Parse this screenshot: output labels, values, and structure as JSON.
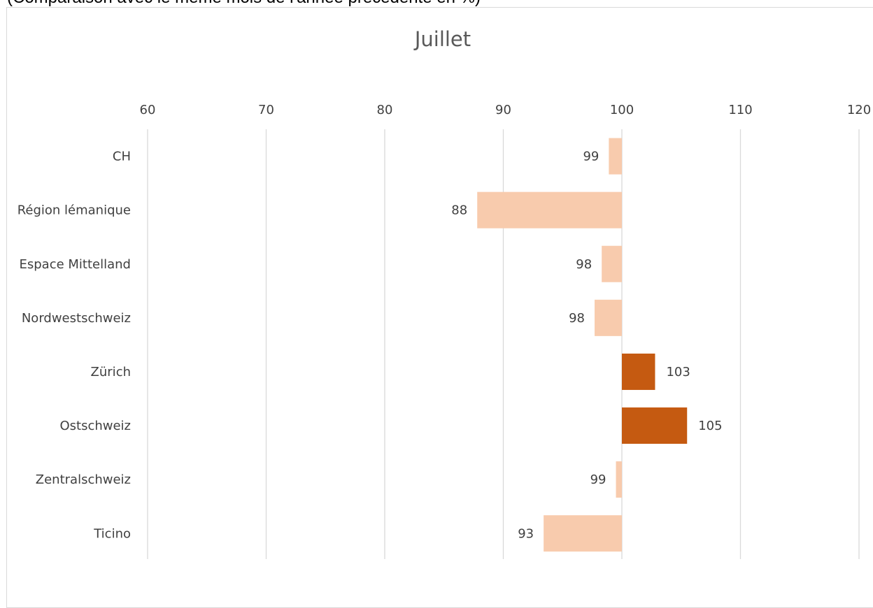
{
  "header_note": "(Comparaison avec le même mois de l'année précédente en %)",
  "colors": {
    "decline": "#f8cbad",
    "growth": "#c55a11",
    "grid": "#d9d9d9",
    "text": "#404040"
  },
  "chart_data": {
    "type": "bar",
    "orientation": "horizontal",
    "title": "Juillet",
    "xlim": [
      60,
      120
    ],
    "xticks": [
      60,
      70,
      80,
      90,
      100,
      110,
      120
    ],
    "baseline": 100,
    "grid": "vertical",
    "categories": [
      "CH",
      "Région lémanique",
      "Espace Mittelland",
      "Nordwestschweiz",
      "Zürich",
      "Ostschweiz",
      "Zentralschweiz",
      "Ticino"
    ],
    "values": [
      98.9,
      87.8,
      98.3,
      97.7,
      102.8,
      105.5,
      99.5,
      93.4
    ],
    "labels": [
      "99",
      "88",
      "98",
      "98",
      "103",
      "105",
      "99",
      "93"
    ]
  }
}
